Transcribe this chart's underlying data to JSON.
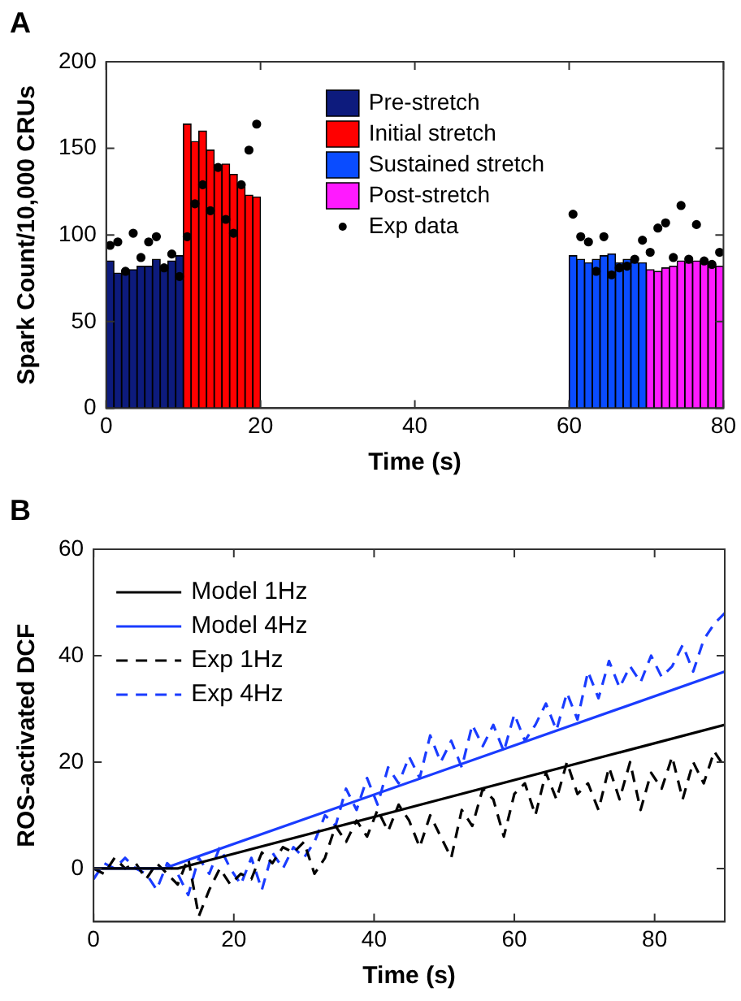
{
  "chart_data": [
    {
      "type": "bar",
      "annotations": [
        "A"
      ],
      "xlabel": "Time (s)",
      "ylabel": "Spark Count/10,000 CRUs",
      "xlim": [
        0,
        80
      ],
      "xticks": [
        0,
        20,
        40,
        60,
        80
      ],
      "ylim": [
        0,
        200
      ],
      "yticks": [
        0,
        50,
        100,
        150,
        200
      ],
      "legend": "top right",
      "marker": "circle",
      "series": [
        {
          "name": "Pre-stretch",
          "color": "#0d1b7d",
          "x": [
            0.5,
            1.5,
            2.5,
            3.5,
            4.5,
            5.5,
            6.5,
            7.5,
            8.5,
            9.5
          ],
          "values": [
            85,
            78,
            78,
            80,
            82,
            82,
            86,
            82,
            85,
            88
          ]
        },
        {
          "name": "Initial stretch",
          "color": "#ff0000",
          "x": [
            10.5,
            11.5,
            12.5,
            13.5,
            14.5,
            15.5,
            16.5,
            17.5,
            18.5,
            19.5
          ],
          "values": [
            164,
            154,
            160,
            149,
            140,
            141,
            135,
            129,
            123,
            122
          ]
        },
        {
          "name": "Sustained stretch",
          "color": "#0a4cff",
          "x": [
            60.5,
            61.5,
            62.5,
            63.5,
            64.5,
            65.5,
            66.5,
            67.5,
            68.5,
            69.5
          ],
          "values": [
            88,
            86,
            84,
            86,
            88,
            89,
            84,
            86,
            84,
            84
          ]
        },
        {
          "name": "Post-stretch",
          "color": "#ff1aff",
          "x": [
            70.5,
            71.5,
            72.5,
            73.5,
            74.5,
            75.5,
            76.5,
            77.5,
            78.5,
            79.5
          ],
          "values": [
            80,
            79,
            81,
            82,
            85,
            84,
            85,
            84,
            83,
            82
          ]
        },
        {
          "name": "Exp data",
          "type": "scatter",
          "color": "#000000",
          "x": [
            0.5,
            1.5,
            2.5,
            3.5,
            4.5,
            5.5,
            6.5,
            7.5,
            8.5,
            9.5,
            10.5,
            11.5,
            12.5,
            13.5,
            14.5,
            15.5,
            16.5,
            17.5,
            18.5,
            19.5,
            60.5,
            61.5,
            62.5,
            63.5,
            64.5,
            65.5,
            66.5,
            67.5,
            68.5,
            69.5,
            70.5,
            71.5,
            72.5,
            73.5,
            74.5,
            75.5,
            76.5,
            77.5,
            78.5,
            79.5
          ],
          "values": [
            94,
            96,
            79,
            101,
            87,
            96,
            99,
            81,
            89,
            76,
            99,
            118,
            129,
            114,
            139,
            109,
            101,
            129,
            149,
            164,
            112,
            99,
            96,
            79,
            99,
            77,
            81,
            82,
            86,
            97,
            90,
            104,
            107,
            87,
            117,
            86,
            106,
            85,
            83,
            90
          ]
        }
      ]
    },
    {
      "type": "line",
      "annotations": [
        "B"
      ],
      "xlabel": "Time (s)",
      "ylabel": "ROS-activated DCF",
      "xlim": [
        0,
        90
      ],
      "xticks": [
        0,
        20,
        40,
        60,
        80
      ],
      "ylim": [
        -10,
        60
      ],
      "yticks": [
        0,
        20,
        40,
        60
      ],
      "legend": "top left",
      "series": [
        {
          "name": "Model 1Hz",
          "color": "#000000",
          "line_style": "solid",
          "x": [
            0,
            12,
            90
          ],
          "values": [
            0,
            0,
            27
          ]
        },
        {
          "name": "Model 4Hz",
          "color": "#1a3cff",
          "line_style": "solid",
          "x": [
            0,
            10,
            90
          ],
          "values": [
            0,
            0,
            37
          ]
        },
        {
          "name": "Exp 1Hz",
          "color": "#000000",
          "line_style": "dashed",
          "x": [
            0,
            1.5,
            3,
            4.5,
            6,
            7.5,
            9,
            10.5,
            12,
            13.5,
            15,
            16.5,
            18,
            19.5,
            21,
            22.5,
            24,
            25.5,
            27,
            28.5,
            30,
            31.5,
            33,
            34.5,
            36,
            37.5,
            39,
            40.5,
            42,
            43.5,
            45,
            46.5,
            48,
            49.5,
            51,
            52.5,
            54,
            55.5,
            57,
            58.5,
            60,
            61.5,
            63,
            64.5,
            66,
            67.5,
            69,
            70.5,
            72,
            73.5,
            75,
            76.5,
            78,
            79.5,
            81,
            82.5,
            84,
            85.5,
            87,
            88.5,
            90
          ],
          "values": [
            0,
            -1,
            2,
            0,
            1,
            -2,
            1,
            -1,
            -3,
            2,
            -9,
            -4,
            0,
            -3,
            -1,
            -2,
            3,
            1,
            4,
            3,
            5,
            -1,
            2,
            8,
            5,
            9,
            6,
            11,
            7,
            12,
            9,
            4,
            10,
            6,
            2,
            11,
            8,
            15,
            13,
            6,
            14,
            16,
            10,
            18,
            13,
            20,
            14,
            16,
            11,
            19,
            13,
            20,
            11,
            18,
            15,
            21,
            13,
            20,
            16,
            22,
            19
          ]
        },
        {
          "name": "Exp 4Hz",
          "color": "#1a3cff",
          "line_style": "dashed",
          "x": [
            0,
            1.5,
            3,
            4.5,
            6,
            7.5,
            9,
            10.5,
            12,
            13.5,
            15,
            16.5,
            18,
            19.5,
            21,
            22.5,
            24,
            25.5,
            27,
            28.5,
            30,
            31.5,
            33,
            34.5,
            36,
            37.5,
            39,
            40.5,
            42,
            43.5,
            45,
            46.5,
            48,
            49.5,
            51,
            52.5,
            54,
            55.5,
            57,
            58.5,
            60,
            61.5,
            63,
            64.5,
            66,
            67.5,
            69,
            70.5,
            72,
            73.5,
            75,
            76.5,
            78,
            79.5,
            81,
            82.5,
            84,
            85.5,
            87,
            88.5,
            90
          ],
          "values": [
            -2,
            1,
            0,
            2,
            0,
            -1,
            -4,
            1,
            -1,
            -5,
            2,
            -1,
            4,
            0,
            -3,
            2,
            -4,
            3,
            0,
            4,
            2,
            5,
            10,
            8,
            15,
            11,
            17,
            12,
            19,
            16,
            21,
            17,
            25,
            20,
            24,
            19,
            27,
            23,
            27,
            22,
            29,
            24,
            27,
            31,
            26,
            33,
            28,
            37,
            32,
            39,
            34,
            38,
            35,
            40,
            36,
            38,
            42,
            37,
            43,
            46,
            48
          ]
        }
      ]
    }
  ]
}
